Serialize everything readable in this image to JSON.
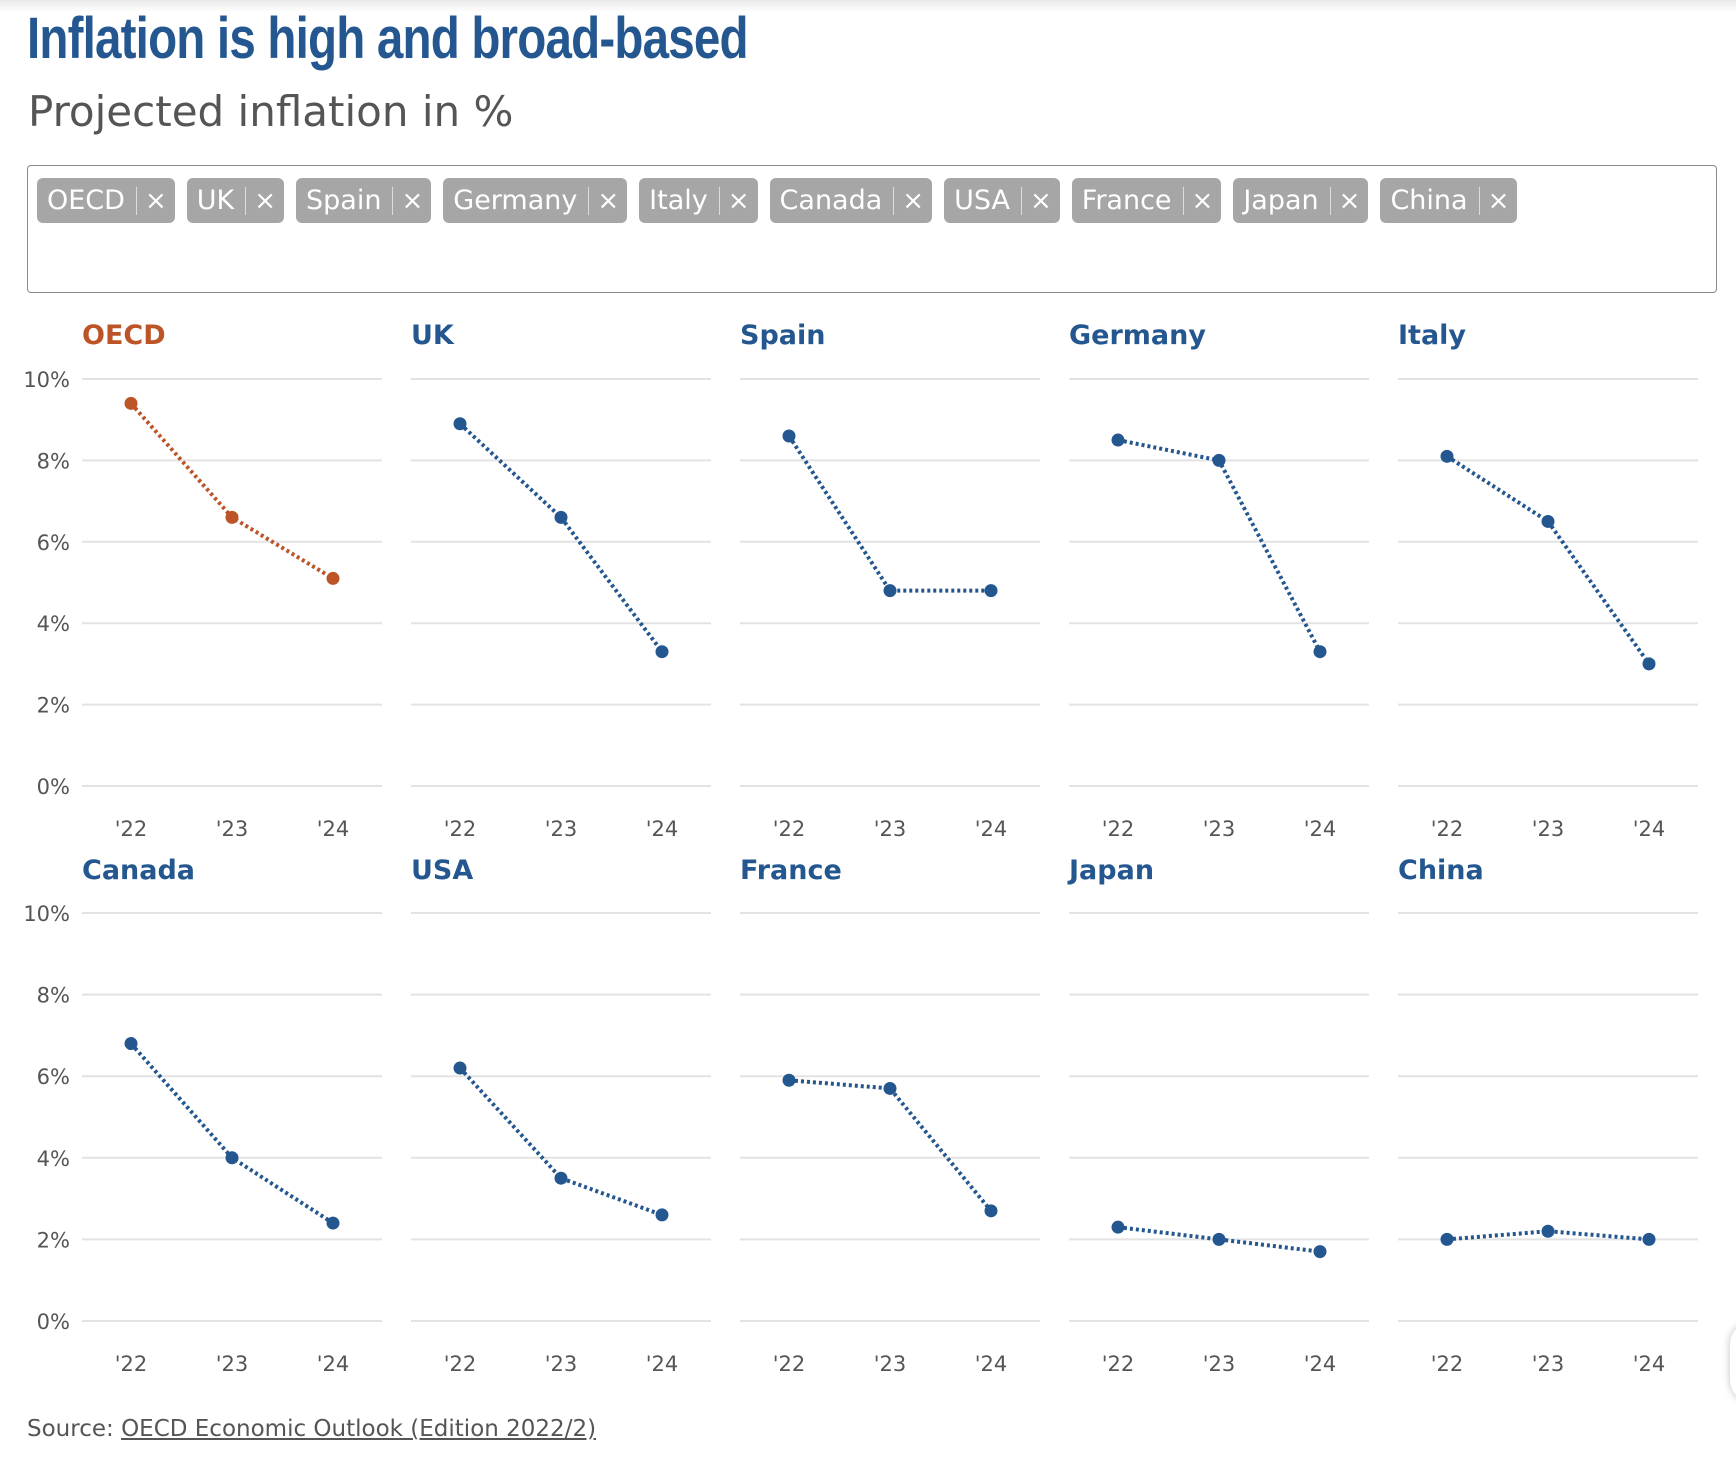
{
  "title": "Inflation is high and broad-based",
  "subtitle": "Projected inflation in %",
  "filter": {
    "tags": [
      "OECD",
      "UK",
      "Spain",
      "Germany",
      "Italy",
      "Canada",
      "USA",
      "France",
      "Japan",
      "China"
    ],
    "remove_glyph": "×"
  },
  "colors": {
    "title": "#24578f",
    "highlight": "#bc5428",
    "series": "#24578f",
    "grid": "#e3e3e3",
    "axis_text": "#555555"
  },
  "source": {
    "label": "Source:",
    "link_text": "OECD Economic Outlook (Edition 2022/2)"
  },
  "chart_data": {
    "type": "line",
    "layout": "small-multiples",
    "x": [
      "'22",
      "'23",
      "'24"
    ],
    "ylim": [
      0,
      10
    ],
    "y_ticks": [
      "0%",
      "2%",
      "4%",
      "6%",
      "8%",
      "10%"
    ],
    "line_style": "dotted",
    "grid": true,
    "panels": [
      {
        "name": "OECD",
        "values": [
          9.4,
          6.6,
          5.1
        ],
        "highlight": true
      },
      {
        "name": "UK",
        "values": [
          8.9,
          6.6,
          3.3
        ]
      },
      {
        "name": "Spain",
        "values": [
          8.6,
          4.8,
          4.8
        ]
      },
      {
        "name": "Germany",
        "values": [
          8.5,
          8.0,
          3.3
        ]
      },
      {
        "name": "Italy",
        "values": [
          8.1,
          6.5,
          3.0
        ]
      },
      {
        "name": "Canada",
        "values": [
          6.8,
          4.0,
          2.4
        ]
      },
      {
        "name": "USA",
        "values": [
          6.2,
          3.5,
          2.6
        ]
      },
      {
        "name": "France",
        "values": [
          5.9,
          5.7,
          2.7
        ]
      },
      {
        "name": "Japan",
        "values": [
          2.3,
          2.0,
          1.7
        ]
      },
      {
        "name": "China",
        "values": [
          2.0,
          2.2,
          2.0
        ]
      }
    ]
  }
}
